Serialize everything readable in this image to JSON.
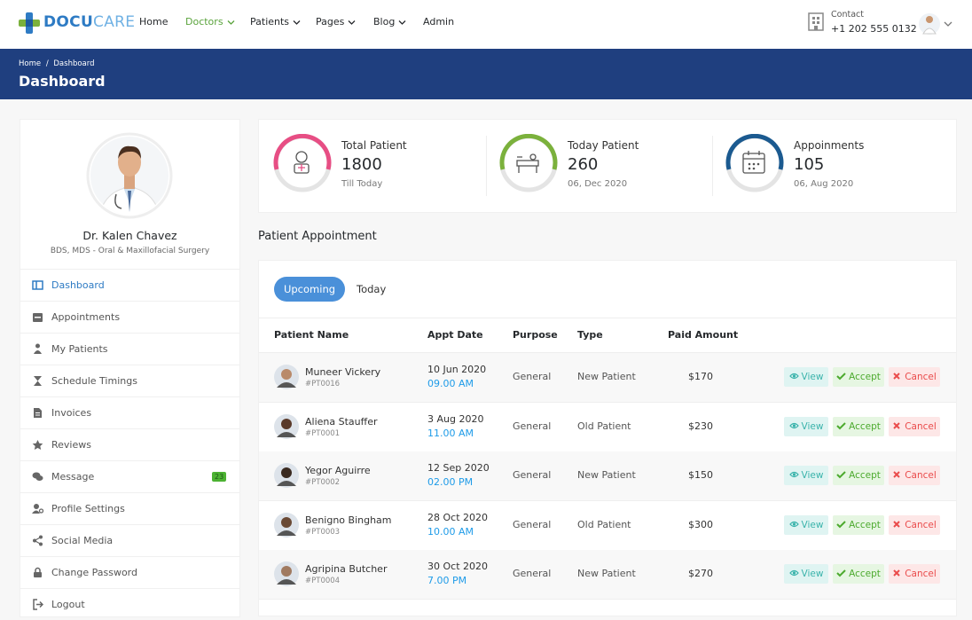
{
  "header": {
    "brand": [
      "DOCU",
      "CARE"
    ],
    "nav": [
      {
        "label": "Home",
        "dropdown": false
      },
      {
        "label": "Doctors",
        "dropdown": true,
        "active": true
      },
      {
        "label": "Patients",
        "dropdown": true
      },
      {
        "label": "Pages",
        "dropdown": true
      },
      {
        "label": "Blog",
        "dropdown": true
      },
      {
        "label": "Admin",
        "dropdown": false
      }
    ],
    "contact_label": "Contact",
    "contact_phone": "+1 202 555 0132"
  },
  "banner": {
    "breadcrumb": [
      "Home",
      "Dashboard"
    ],
    "separator": "/",
    "title": "Dashboard"
  },
  "profile": {
    "name": "Dr. Kalen Chavez",
    "specialty": "BDS, MDS - Oral & Maxillofacial Surgery"
  },
  "menu": [
    {
      "label": "Dashboard",
      "active": true
    },
    {
      "label": "Appointments"
    },
    {
      "label": "My Patients"
    },
    {
      "label": "Schedule Timings"
    },
    {
      "label": "Invoices"
    },
    {
      "label": "Reviews"
    },
    {
      "label": "Message",
      "badge": "23"
    },
    {
      "label": "Profile Settings"
    },
    {
      "label": "Social Media"
    },
    {
      "label": "Change Password"
    },
    {
      "label": "Logout"
    }
  ],
  "stats": [
    {
      "label": "Total Patient",
      "value": "1800",
      "note": "Till Today",
      "color": "#e74e84"
    },
    {
      "label": "Today Patient",
      "value": "260",
      "note": "06, Dec 2020",
      "color": "#7bb13c"
    },
    {
      "label": "Appoinments",
      "value": "105",
      "note": "06, Aug 2020",
      "color": "#1b5a90"
    }
  ],
  "section_title": "Patient Appointment",
  "tabs": [
    "Upcoming",
    "Today"
  ],
  "table": {
    "columns": [
      "Patient Name",
      "Appt Date",
      "Purpose",
      "Type",
      "Paid Amount"
    ],
    "actions": [
      "View",
      "Accept",
      "Cancel"
    ],
    "rows": [
      {
        "name": "Muneer Vickery",
        "id": "#PT0016",
        "date": "10 Jun 2020",
        "time": "09.00 AM",
        "purpose": "General",
        "type": "New Patient",
        "amount": "$170"
      },
      {
        "name": "Aliena Stauffer",
        "id": "#PT0001",
        "date": "3 Aug 2020",
        "time": "11.00 AM",
        "purpose": "General",
        "type": "Old Patient",
        "amount": "$230"
      },
      {
        "name": "Yegor Aguirre",
        "id": "#PT0002",
        "date": "12 Sep 2020",
        "time": "02.00 PM",
        "purpose": "General",
        "type": "New Patient",
        "amount": "$150"
      },
      {
        "name": "Benigno Bingham",
        "id": "#PT0003",
        "date": "28 Oct 2020",
        "time": "10.00 AM",
        "purpose": "General",
        "type": "Old Patient",
        "amount": "$300"
      },
      {
        "name": "Agripina Butcher",
        "id": "#PT0004",
        "date": "30 Oct 2020",
        "time": "7.00 PM",
        "purpose": "General",
        "type": "New Patient",
        "amount": "$270"
      }
    ]
  }
}
